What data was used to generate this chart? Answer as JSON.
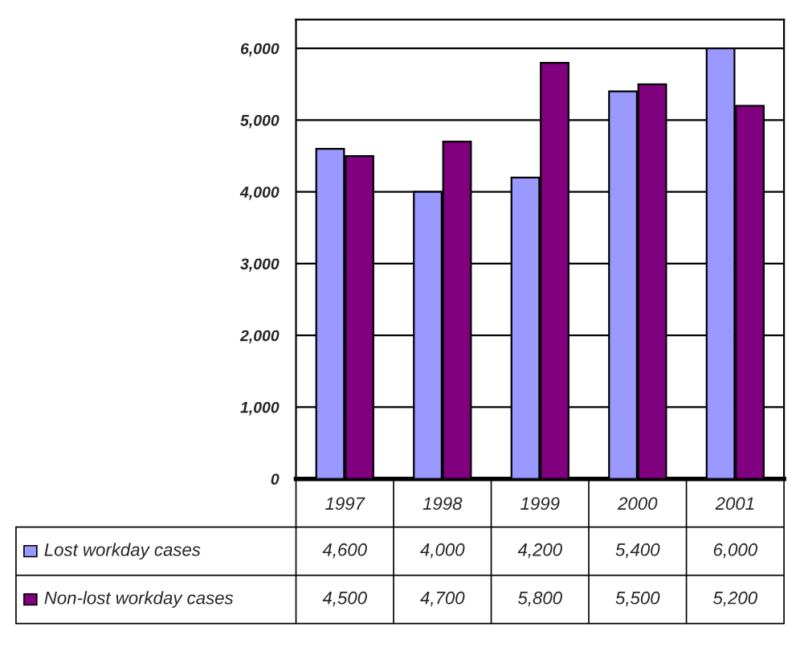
{
  "chart_data": {
    "type": "bar",
    "categories": [
      "1997",
      "1998",
      "1999",
      "2000",
      "2001"
    ],
    "series": [
      {
        "name": "Lost workday cases",
        "color": "#9999ff",
        "values": [
          4600,
          4000,
          4200,
          5400,
          6000
        ],
        "value_labels": [
          "4,600",
          "4,000",
          "4,200",
          "5,400",
          "6,000"
        ]
      },
      {
        "name": "Non-lost workday cases",
        "color": "#800080",
        "values": [
          4500,
          4700,
          5800,
          5500,
          5200
        ],
        "value_labels": [
          "4,500",
          "4,700",
          "5,800",
          "5,500",
          "5,200"
        ]
      }
    ],
    "ylim": [
      0,
      6400
    ],
    "yticks": [
      {
        "value": 0,
        "label": "0"
      },
      {
        "value": 1000,
        "label": "1,000"
      },
      {
        "value": 2000,
        "label": "2,000"
      },
      {
        "value": 3000,
        "label": "3,000"
      },
      {
        "value": 4000,
        "label": "4,000"
      },
      {
        "value": 5000,
        "label": "5,000"
      },
      {
        "value": 6000,
        "label": "6,000"
      }
    ],
    "grid": "y",
    "legend": "bottom left"
  }
}
